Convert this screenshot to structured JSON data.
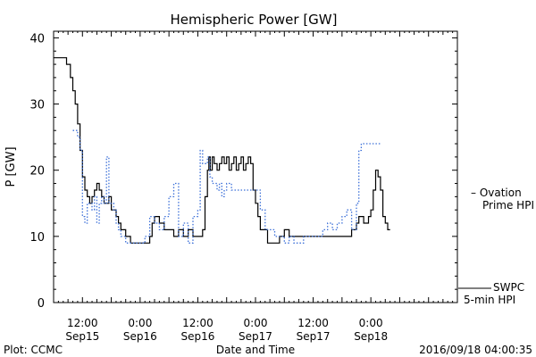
{
  "chart_data": {
    "type": "line",
    "title": "Hemispheric Power [GW]",
    "ylabel": "P [GW]",
    "xlabel": "Date and Time",
    "ylim": [
      0,
      41
    ],
    "xlim_hours": [
      0,
      84
    ],
    "yticks": [
      0,
      10,
      20,
      30,
      40
    ],
    "xticks": [
      {
        "hour": 6,
        "time": "12:00",
        "date": "Sep15"
      },
      {
        "hour": 18,
        "time": "0:00",
        "date": "Sep16"
      },
      {
        "hour": 30,
        "time": "12:00",
        "date": "Sep16"
      },
      {
        "hour": 42,
        "time": "0:00",
        "date": "Sep17"
      },
      {
        "hour": 54,
        "time": "12:00",
        "date": "Sep17"
      },
      {
        "hour": 66,
        "time": "0:00",
        "date": "Sep18"
      }
    ],
    "series": [
      {
        "name": "SWPC 5-min HPI",
        "label_lines": [
          "SWPC",
          "5-min HPI"
        ],
        "color": "#000000",
        "style": "solid",
        "x": [
          0,
          2.2,
          2.7,
          3,
          3.5,
          4,
          4.5,
          5,
          5.5,
          6,
          6.5,
          7,
          7.5,
          8,
          8.5,
          9,
          9.5,
          10,
          10.5,
          11,
          11.5,
          12,
          12.5,
          13,
          13.5,
          14,
          14.5,
          15,
          15.5,
          16,
          17,
          18,
          19,
          20,
          20.5,
          21,
          21.5,
          22,
          23,
          24,
          25,
          26,
          27,
          28,
          29,
          30,
          31,
          31.5,
          32,
          32.3,
          32.6,
          33,
          33.4,
          34,
          34.5,
          35,
          35.5,
          36,
          36.5,
          37,
          37.5,
          38,
          38.5,
          39,
          39.5,
          40,
          40.5,
          41,
          41.5,
          42,
          42.5,
          43,
          44,
          44.5,
          45,
          46,
          47,
          48,
          49,
          50,
          51,
          52,
          53,
          54,
          55,
          56,
          57,
          58,
          59,
          60,
          61,
          62,
          63,
          63.5,
          64,
          64.5,
          65,
          65.5,
          66,
          66.5,
          67,
          67.5,
          68,
          68.5,
          69,
          69.5,
          70
        ],
        "y": [
          37,
          37,
          36,
          36,
          34,
          32,
          30,
          27,
          23,
          19,
          17,
          16,
          15,
          16,
          17,
          18,
          17,
          16,
          15,
          15,
          16,
          14,
          14,
          13,
          12,
          11,
          11,
          10,
          10,
          9,
          9,
          9,
          9,
          10,
          12,
          13,
          13,
          12,
          11,
          11,
          10,
          11,
          10,
          11,
          10,
          10,
          11,
          16,
          20,
          22,
          20,
          22,
          21,
          20,
          21,
          22,
          21,
          22,
          20,
          21,
          22,
          20,
          21,
          22,
          20,
          21,
          22,
          21,
          17,
          15,
          13,
          11,
          11,
          9,
          9,
          9,
          10,
          11,
          10,
          10,
          10,
          10,
          10,
          10,
          10,
          10,
          10,
          10,
          10,
          10,
          10,
          11,
          12,
          13,
          13,
          12,
          12,
          13,
          14,
          17,
          20,
          19,
          17,
          13,
          12,
          11,
          11
        ]
      },
      {
        "name": "Ovation Prime HPI",
        "label_lines": [
          "– Ovation",
          "Prime HPI"
        ],
        "color": "#3b6fd8",
        "style": "dotted",
        "x": [
          4,
          5,
          5.5,
          6,
          6.5,
          7,
          7.5,
          8,
          8.5,
          9,
          9.5,
          10,
          10.5,
          11,
          11.5,
          12,
          12.5,
          13,
          13.5,
          14,
          15,
          16,
          17,
          18,
          19,
          20,
          21,
          22,
          23,
          24,
          25,
          26,
          27,
          28,
          29,
          30,
          30.5,
          31,
          32,
          32.5,
          33,
          33.5,
          34,
          34.5,
          35,
          35.5,
          36,
          37,
          38,
          39,
          40,
          41,
          42,
          43,
          44,
          45,
          46,
          47,
          48,
          49,
          50,
          51,
          52,
          53,
          54,
          55,
          56,
          57,
          58,
          59,
          60,
          61,
          62,
          63,
          63.5,
          64,
          65,
          66,
          67,
          68
        ],
        "y": [
          26,
          25,
          23,
          13,
          12,
          15,
          15,
          14,
          16,
          12,
          15,
          16,
          15,
          22,
          15,
          15,
          14,
          12,
          11,
          10,
          9,
          9,
          9,
          9,
          10,
          13,
          12,
          11,
          13,
          16,
          18,
          10,
          12,
          9,
          13,
          14,
          23,
          21,
          22,
          19,
          18,
          18,
          17,
          18,
          16,
          17,
          18,
          17,
          17,
          17,
          17,
          17,
          17,
          14,
          11,
          11,
          10,
          10,
          9,
          10,
          9,
          9,
          10,
          10,
          10,
          10,
          11,
          12,
          11,
          12,
          13,
          14,
          11,
          15,
          23,
          24,
          24,
          24,
          24,
          24
        ]
      }
    ]
  },
  "footer": {
    "left": "Plot: CCMC",
    "center": "Date and Time",
    "right": "2016/09/18 04:00:35"
  }
}
